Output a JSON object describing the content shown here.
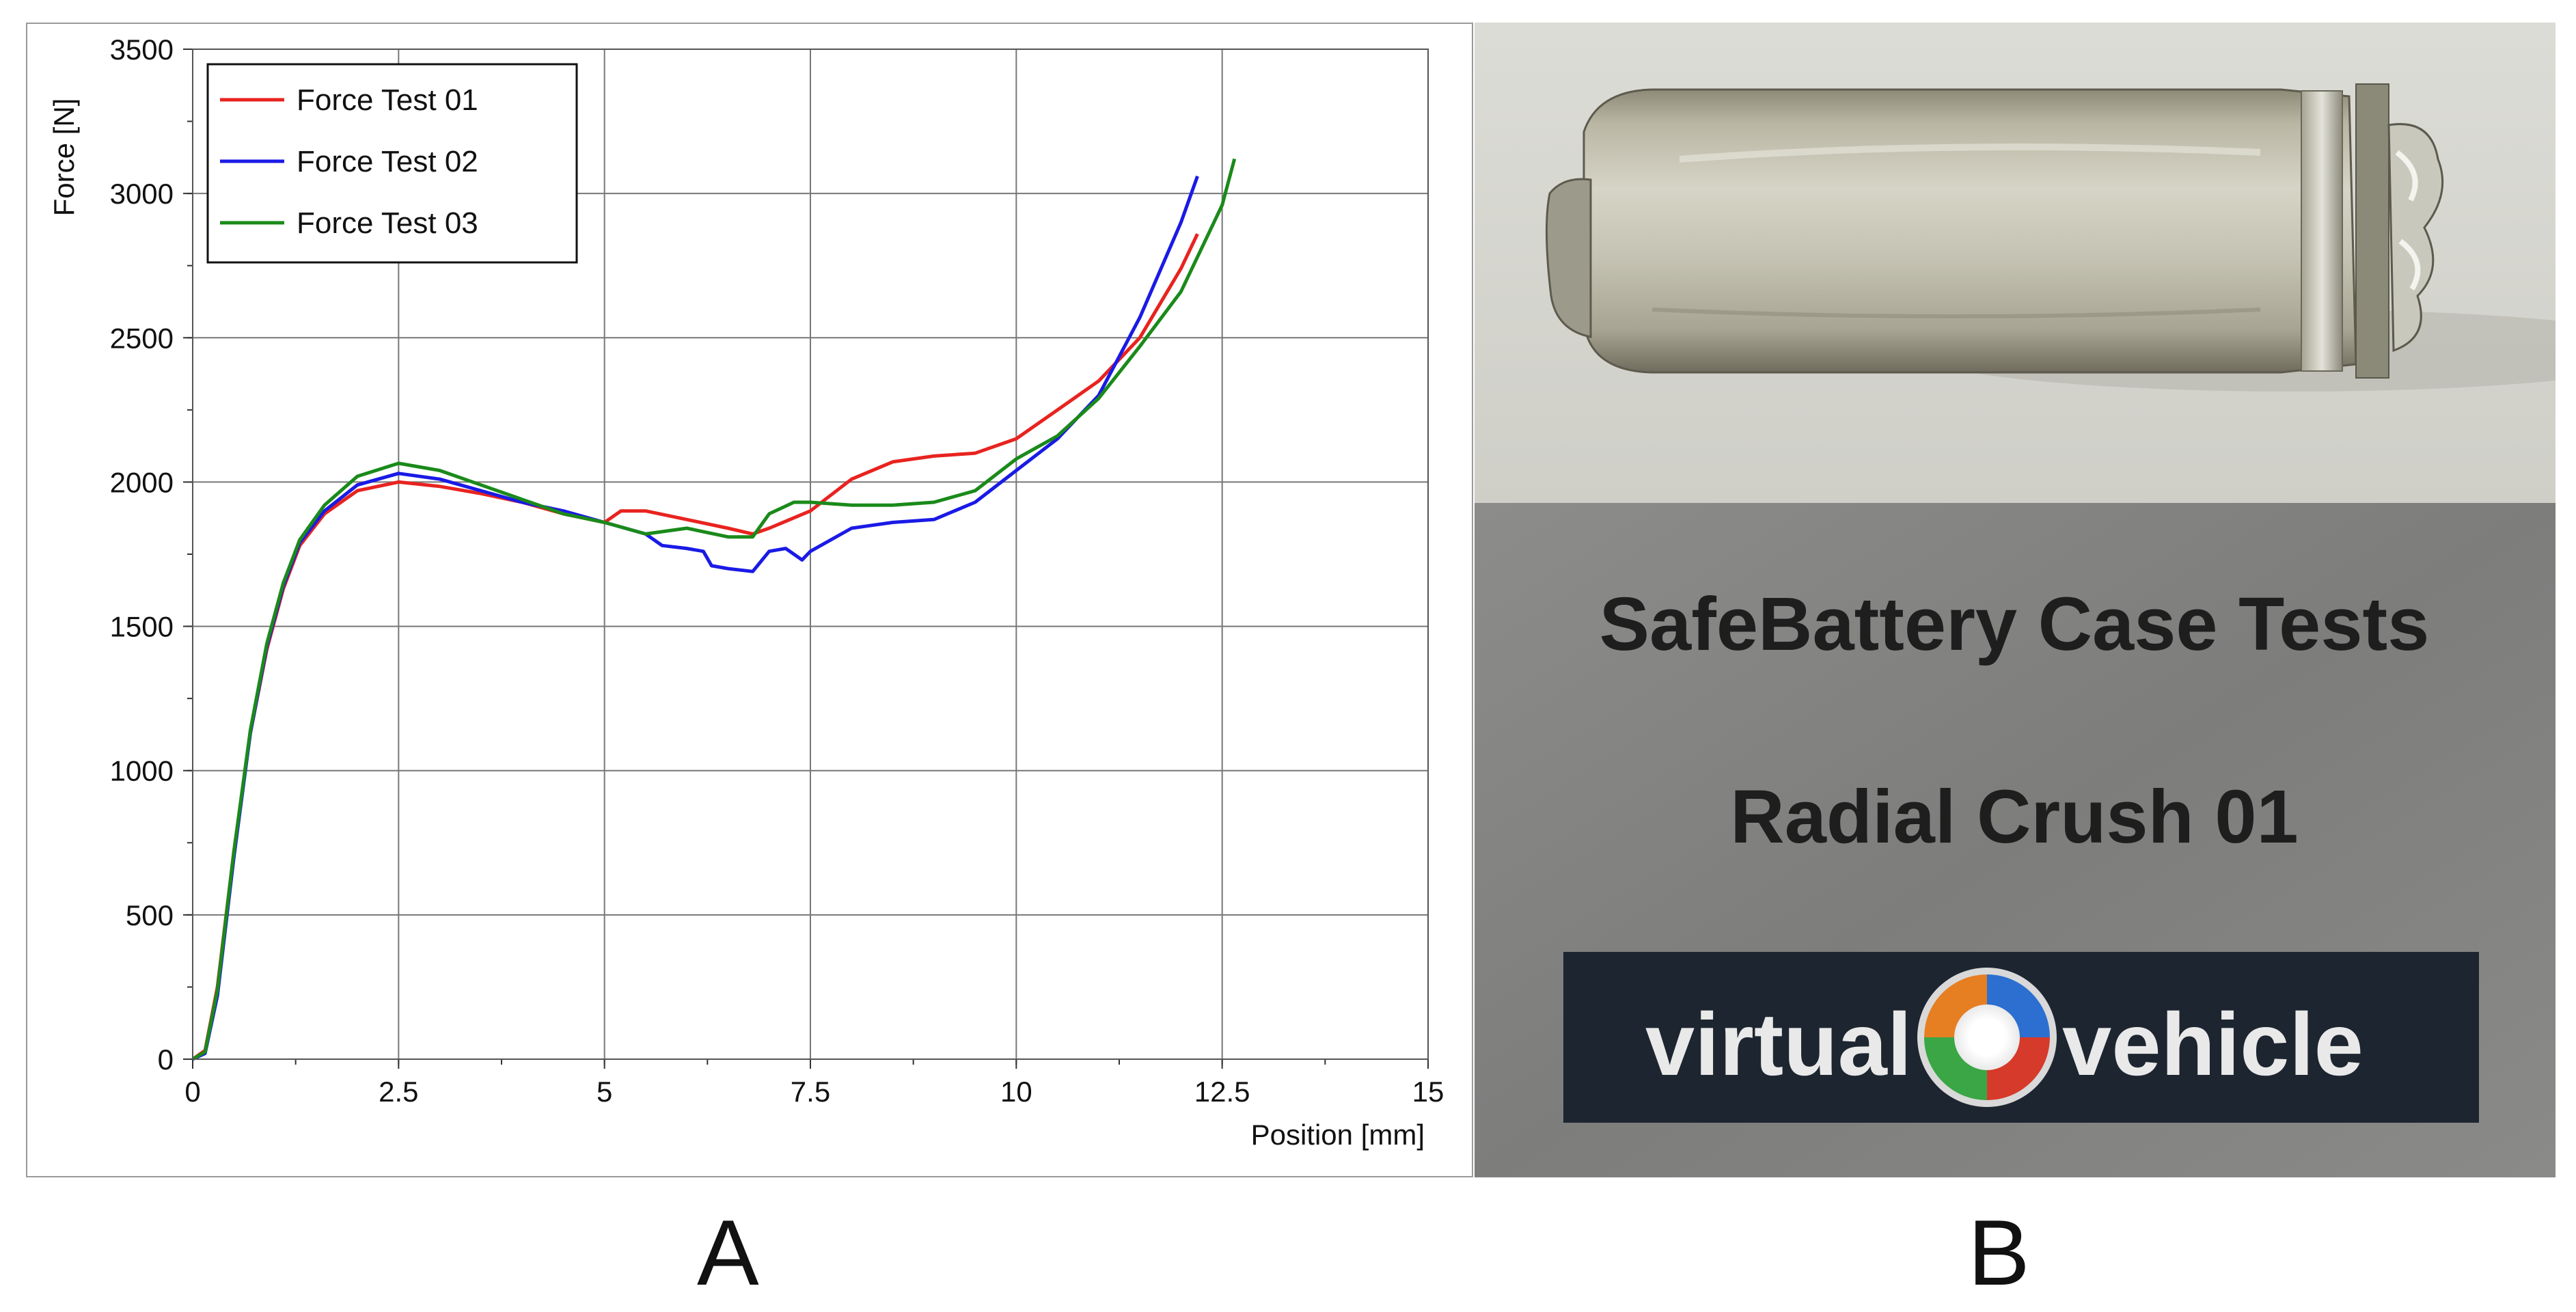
{
  "panels": {
    "left_letter": "A",
    "right_letter": "B"
  },
  "chart_data": {
    "type": "line",
    "title": "",
    "xlabel": "Position [mm]",
    "ylabel": "Force [N]",
    "xlim": [
      0,
      15
    ],
    "ylim": [
      0,
      3500
    ],
    "xticks": [
      0,
      2.5,
      5,
      7.5,
      10,
      12.5,
      15
    ],
    "xtick_labels": [
      "0",
      "2.5",
      "5",
      "7.5",
      "10",
      "12.5",
      "15"
    ],
    "yticks": [
      0,
      500,
      1000,
      1500,
      2000,
      2500,
      3000,
      3500
    ],
    "ytick_labels": [
      "0",
      "500",
      "1000",
      "1500",
      "2000",
      "2500",
      "3000",
      "3500"
    ],
    "grid": true,
    "legend_position": "top-left",
    "series": [
      {
        "name": "Force Test 01",
        "color": "#e8231f",
        "x": [
          0,
          0.15,
          0.3,
          0.5,
          0.7,
          0.9,
          1.1,
          1.3,
          1.6,
          2.0,
          2.5,
          3.0,
          3.5,
          4.0,
          4.5,
          5.0,
          5.2,
          5.5,
          6.0,
          6.5,
          6.8,
          7.0,
          7.5,
          8.0,
          8.5,
          9.0,
          9.5,
          10.0,
          10.5,
          11.0,
          11.5,
          12.0,
          12.2
        ],
        "y": [
          0,
          30,
          250,
          720,
          1130,
          1420,
          1630,
          1780,
          1890,
          1970,
          2000,
          1985,
          1960,
          1930,
          1890,
          1860,
          1900,
          1900,
          1870,
          1840,
          1820,
          1840,
          1900,
          2010,
          2070,
          2090,
          2100,
          2150,
          2250,
          2350,
          2500,
          2740,
          2860
        ]
      },
      {
        "name": "Force Test 02",
        "color": "#1a1ae6",
        "x": [
          0,
          0.15,
          0.3,
          0.5,
          0.7,
          0.9,
          1.1,
          1.3,
          1.6,
          2.0,
          2.5,
          3.0,
          3.5,
          4.0,
          4.5,
          5.0,
          5.5,
          5.7,
          6.0,
          6.2,
          6.3,
          6.5,
          6.8,
          7.0,
          7.2,
          7.4,
          7.5,
          8.0,
          8.5,
          9.0,
          9.5,
          10.0,
          10.5,
          11.0,
          11.5,
          12.0,
          12.2
        ],
        "y": [
          0,
          20,
          220,
          700,
          1130,
          1430,
          1640,
          1790,
          1900,
          1990,
          2030,
          2010,
          1970,
          1930,
          1900,
          1860,
          1820,
          1780,
          1770,
          1760,
          1710,
          1700,
          1690,
          1760,
          1770,
          1730,
          1760,
          1840,
          1860,
          1870,
          1930,
          2040,
          2150,
          2300,
          2570,
          2900,
          3060
        ]
      },
      {
        "name": "Force Test 03",
        "color": "#1a8a1a",
        "x": [
          0,
          0.15,
          0.3,
          0.5,
          0.7,
          0.9,
          1.1,
          1.3,
          1.6,
          2.0,
          2.5,
          3.0,
          3.5,
          4.0,
          4.5,
          5.0,
          5.5,
          6.0,
          6.5,
          6.8,
          7.0,
          7.3,
          7.5,
          8.0,
          8.5,
          9.0,
          9.5,
          10.0,
          10.5,
          11.0,
          11.5,
          12.0,
          12.5,
          12.65
        ],
        "y": [
          0,
          25,
          240,
          720,
          1140,
          1440,
          1650,
          1800,
          1920,
          2020,
          2065,
          2040,
          1990,
          1940,
          1890,
          1860,
          1820,
          1840,
          1810,
          1810,
          1890,
          1930,
          1930,
          1920,
          1920,
          1930,
          1970,
          2080,
          2160,
          2290,
          2470,
          2660,
          2960,
          3120
        ]
      }
    ]
  },
  "photo": {
    "text_line1": "SafeBattery Case Tests",
    "text_line2": "Radial Crush 01",
    "logo_text_left": "virtual",
    "logo_text_right": "vehicle",
    "logo_colors": [
      "#e67e22",
      "#2c6fd1",
      "#3aa645",
      "#d63a2a"
    ]
  }
}
